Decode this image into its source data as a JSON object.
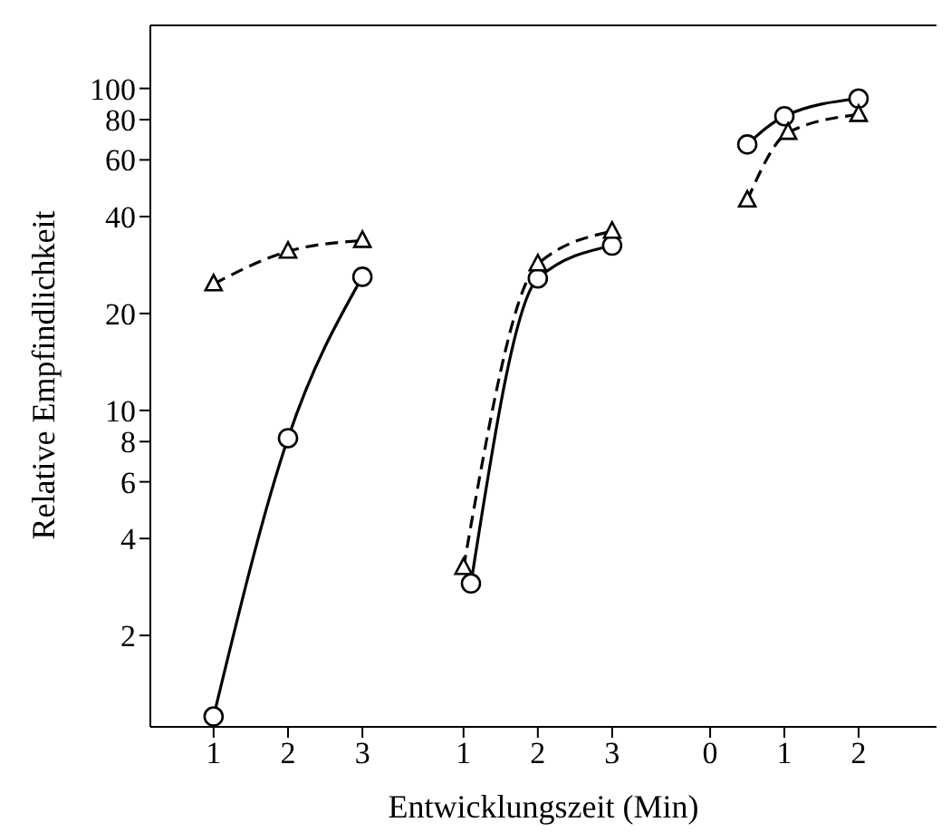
{
  "chart_data": [
    {
      "type": "line",
      "ylabel": "Relative Empfindlichkeit",
      "log": "y",
      "xlim": [
        0.15,
        3.68
      ],
      "ylim": [
        1.04,
        157
      ],
      "xticks": [
        1,
        2,
        3
      ],
      "yticks": [
        2,
        4,
        6,
        8,
        10,
        20,
        40,
        60,
        80,
        100
      ],
      "series": [
        {
          "color": "#000000",
          "marker": "circle",
          "line_style": "solid",
          "x": [
            1,
            2,
            3
          ],
          "values": [
            1.12,
            8.2,
            26
          ]
        },
        {
          "color": "#000000",
          "marker": "triangle",
          "line_style": "dashed",
          "x": [
            1,
            2,
            3
          ],
          "values": [
            24.7,
            31.2,
            33.7
          ]
        }
      ]
    },
    {
      "type": "line",
      "xlabel": "Entwicklungszeit (Min)",
      "log": "y",
      "tick_labels": "x",
      "xlim": [
        0.32,
        3.66
      ],
      "ylim": [
        1.04,
        157
      ],
      "xticks": [
        1,
        2,
        3
      ],
      "series": [
        {
          "color": "#000000",
          "marker": "circle",
          "line_style": "solid",
          "x": [
            1.1,
            2,
            3
          ],
          "values": [
            2.9,
            25.7,
            32.5
          ]
        },
        {
          "color": "#000000",
          "marker": "triangle",
          "line_style": "dashed",
          "x": [
            1,
            2,
            3
          ],
          "values": [
            3.25,
            28.5,
            36
          ]
        }
      ]
    },
    {
      "type": "line",
      "log": "y",
      "tick_labels": "x",
      "xlim": [
        -0.66,
        3.05
      ],
      "ylim": [
        1.04,
        157
      ],
      "xticks": [
        0,
        1,
        2
      ],
      "series": [
        {
          "color": "#000000",
          "marker": "circle",
          "line_style": "solid",
          "x": [
            0.5,
            1,
            2
          ],
          "values": [
            67,
            82,
            93
          ]
        },
        {
          "color": "#000000",
          "marker": "triangle",
          "line_style": "dashed",
          "x": [
            0.5,
            1.05,
            2
          ],
          "values": [
            45,
            73,
            83
          ]
        }
      ]
    }
  ]
}
